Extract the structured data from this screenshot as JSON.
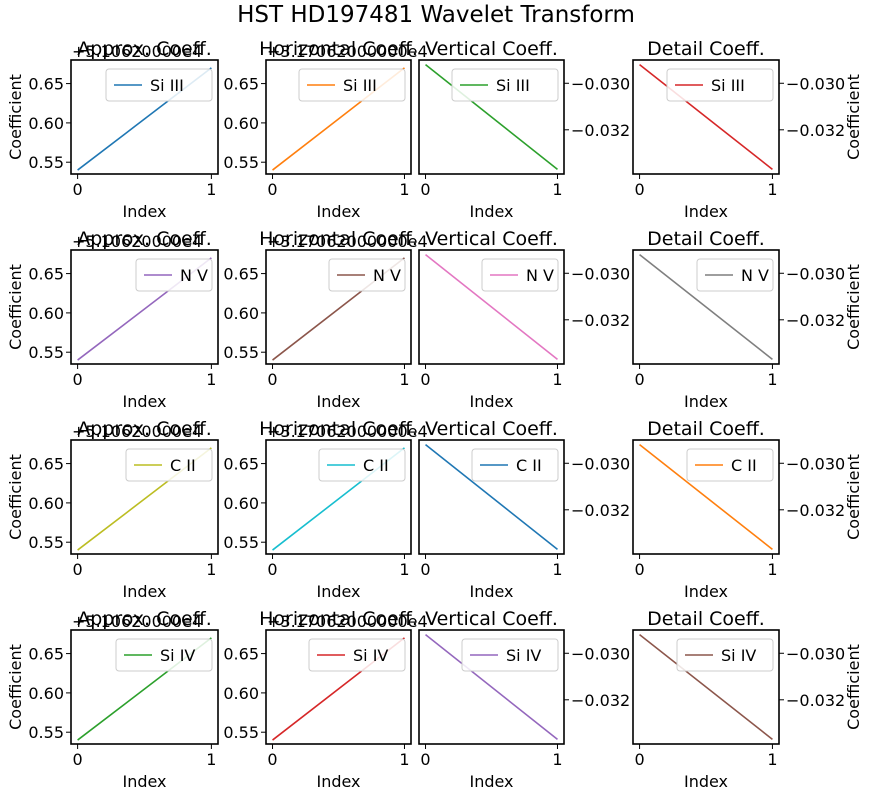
{
  "figure": {
    "title": "HST HD197481 Wavelet Transform"
  },
  "panel_titles": [
    "Approx. Coeff.",
    "Horizontal Coeff.",
    "Vertical Coeff.",
    "Detail Coeff."
  ],
  "axis_text": {
    "xlabel": "Index",
    "ylabel": "Coefficient",
    "offset_approx": "+5.10620000e4",
    "offset_horizontal": "+3.17062000000e4"
  },
  "chart_data": [
    {
      "type": "line",
      "row": "Si III",
      "panel": "Approx. Coeff.",
      "x": [
        0,
        1
      ],
      "y": [
        0.54,
        0.67
      ],
      "ylim": [
        0.535,
        0.68
      ],
      "yticks": [
        0.55,
        0.6,
        0.65
      ],
      "ytick_labels": [
        "0.55",
        "0.60",
        "0.65"
      ],
      "xticks": [
        0,
        1
      ],
      "xtick_labels": [
        "0",
        "1"
      ],
      "series": [
        {
          "name": "Si III",
          "color": "#1f77b4"
        }
      ],
      "legend": "upper-right"
    },
    {
      "type": "line",
      "row": "Si III",
      "panel": "Horizontal Coeff.",
      "x": [
        0,
        1
      ],
      "y": [
        0.54,
        0.67
      ],
      "ylim": [
        0.535,
        0.68
      ],
      "yticks": [
        0.55,
        0.6,
        0.65
      ],
      "ytick_labels": [
        "0.55",
        "0.60",
        "0.65"
      ],
      "xticks": [
        0,
        1
      ],
      "xtick_labels": [
        "0",
        "1"
      ],
      "series": [
        {
          "name": "Si III",
          "color": "#ff7f0e"
        }
      ],
      "legend": "upper-right"
    },
    {
      "type": "line",
      "row": "Si III",
      "panel": "Vertical Coeff.",
      "x": [
        0,
        1
      ],
      "y": [
        -0.0292,
        -0.0337
      ],
      "ylim": [
        -0.0339,
        -0.029
      ],
      "yticks": [
        -0.03,
        -0.032
      ],
      "ytick_labels": [
        "−0.030",
        "−0.032"
      ],
      "xticks": [
        0,
        1
      ],
      "xtick_labels": [
        "0",
        "1"
      ],
      "series": [
        {
          "name": "Si III",
          "color": "#2ca02c"
        }
      ],
      "legend": "upper-right"
    },
    {
      "type": "line",
      "row": "Si III",
      "panel": "Detail Coeff.",
      "x": [
        0,
        1
      ],
      "y": [
        -0.0292,
        -0.0337
      ],
      "ylim": [
        -0.0339,
        -0.029
      ],
      "yticks": [
        -0.03,
        -0.032
      ],
      "ytick_labels": [
        "−0.030",
        "−0.032"
      ],
      "xticks": [
        0,
        1
      ],
      "xtick_labels": [
        "0",
        "1"
      ],
      "series": [
        {
          "name": "Si III",
          "color": "#d62728"
        }
      ],
      "legend": "upper-right"
    },
    {
      "type": "line",
      "row": "N V",
      "panel": "Approx. Coeff.",
      "x": [
        0,
        1
      ],
      "y": [
        0.54,
        0.67
      ],
      "ylim": [
        0.535,
        0.68
      ],
      "yticks": [
        0.55,
        0.6,
        0.65
      ],
      "ytick_labels": [
        "0.55",
        "0.60",
        "0.65"
      ],
      "xticks": [
        0,
        1
      ],
      "xtick_labels": [
        "0",
        "1"
      ],
      "series": [
        {
          "name": "N V",
          "color": "#9467bd"
        }
      ],
      "legend": "upper-right"
    },
    {
      "type": "line",
      "row": "N V",
      "panel": "Horizontal Coeff.",
      "x": [
        0,
        1
      ],
      "y": [
        0.54,
        0.67
      ],
      "ylim": [
        0.535,
        0.68
      ],
      "yticks": [
        0.55,
        0.6,
        0.65
      ],
      "ytick_labels": [
        "0.55",
        "0.60",
        "0.65"
      ],
      "xticks": [
        0,
        1
      ],
      "xtick_labels": [
        "0",
        "1"
      ],
      "series": [
        {
          "name": "N V",
          "color": "#8c564b"
        }
      ],
      "legend": "upper-right"
    },
    {
      "type": "line",
      "row": "N V",
      "panel": "Vertical Coeff.",
      "x": [
        0,
        1
      ],
      "y": [
        -0.0292,
        -0.0337
      ],
      "ylim": [
        -0.0339,
        -0.029
      ],
      "yticks": [
        -0.03,
        -0.032
      ],
      "ytick_labels": [
        "−0.030",
        "−0.032"
      ],
      "xticks": [
        0,
        1
      ],
      "xtick_labels": [
        "0",
        "1"
      ],
      "series": [
        {
          "name": "N V",
          "color": "#e377c2"
        }
      ],
      "legend": "upper-right"
    },
    {
      "type": "line",
      "row": "N V",
      "panel": "Detail Coeff.",
      "x": [
        0,
        1
      ],
      "y": [
        -0.0292,
        -0.0337
      ],
      "ylim": [
        -0.0339,
        -0.029
      ],
      "yticks": [
        -0.03,
        -0.032
      ],
      "ytick_labels": [
        "−0.030",
        "−0.032"
      ],
      "xticks": [
        0,
        1
      ],
      "xtick_labels": [
        "0",
        "1"
      ],
      "series": [
        {
          "name": "N V",
          "color": "#7f7f7f"
        }
      ],
      "legend": "upper-right"
    },
    {
      "type": "line",
      "row": "C II",
      "panel": "Approx. Coeff.",
      "x": [
        0,
        1
      ],
      "y": [
        0.54,
        0.67
      ],
      "ylim": [
        0.535,
        0.68
      ],
      "yticks": [
        0.55,
        0.6,
        0.65
      ],
      "ytick_labels": [
        "0.55",
        "0.60",
        "0.65"
      ],
      "xticks": [
        0,
        1
      ],
      "xtick_labels": [
        "0",
        "1"
      ],
      "series": [
        {
          "name": "C II",
          "color": "#bcbd22"
        }
      ],
      "legend": "upper-right"
    },
    {
      "type": "line",
      "row": "C II",
      "panel": "Horizontal Coeff.",
      "x": [
        0,
        1
      ],
      "y": [
        0.54,
        0.67
      ],
      "ylim": [
        0.535,
        0.68
      ],
      "yticks": [
        0.55,
        0.6,
        0.65
      ],
      "ytick_labels": [
        "0.55",
        "0.60",
        "0.65"
      ],
      "xticks": [
        0,
        1
      ],
      "xtick_labels": [
        "0",
        "1"
      ],
      "series": [
        {
          "name": "C II",
          "color": "#17becf"
        }
      ],
      "legend": "upper-right"
    },
    {
      "type": "line",
      "row": "C II",
      "panel": "Vertical Coeff.",
      "x": [
        0,
        1
      ],
      "y": [
        -0.0292,
        -0.0337
      ],
      "ylim": [
        -0.0339,
        -0.029
      ],
      "yticks": [
        -0.03,
        -0.032
      ],
      "ytick_labels": [
        "−0.030",
        "−0.032"
      ],
      "xticks": [
        0,
        1
      ],
      "xtick_labels": [
        "0",
        "1"
      ],
      "series": [
        {
          "name": "C II",
          "color": "#1f77b4"
        }
      ],
      "legend": "upper-right"
    },
    {
      "type": "line",
      "row": "C II",
      "panel": "Detail Coeff.",
      "x": [
        0,
        1
      ],
      "y": [
        -0.0292,
        -0.0337
      ],
      "ylim": [
        -0.0339,
        -0.029
      ],
      "yticks": [
        -0.03,
        -0.032
      ],
      "ytick_labels": [
        "−0.030",
        "−0.032"
      ],
      "xticks": [
        0,
        1
      ],
      "xtick_labels": [
        "0",
        "1"
      ],
      "series": [
        {
          "name": "C II",
          "color": "#ff7f0e"
        }
      ],
      "legend": "upper-right"
    },
    {
      "type": "line",
      "row": "Si IV",
      "panel": "Approx. Coeff.",
      "x": [
        0,
        1
      ],
      "y": [
        0.54,
        0.67
      ],
      "ylim": [
        0.535,
        0.68
      ],
      "yticks": [
        0.55,
        0.6,
        0.65
      ],
      "ytick_labels": [
        "0.55",
        "0.60",
        "0.65"
      ],
      "xticks": [
        0,
        1
      ],
      "xtick_labels": [
        "0",
        "1"
      ],
      "series": [
        {
          "name": "Si IV",
          "color": "#2ca02c"
        }
      ],
      "legend": "upper-right"
    },
    {
      "type": "line",
      "row": "Si IV",
      "panel": "Horizontal Coeff.",
      "x": [
        0,
        1
      ],
      "y": [
        0.54,
        0.67
      ],
      "ylim": [
        0.535,
        0.68
      ],
      "yticks": [
        0.55,
        0.6,
        0.65
      ],
      "ytick_labels": [
        "0.55",
        "0.60",
        "0.65"
      ],
      "xticks": [
        0,
        1
      ],
      "xtick_labels": [
        "0",
        "1"
      ],
      "series": [
        {
          "name": "Si IV",
          "color": "#d62728"
        }
      ],
      "legend": "upper-right"
    },
    {
      "type": "line",
      "row": "Si IV",
      "panel": "Vertical Coeff.",
      "x": [
        0,
        1
      ],
      "y": [
        -0.0292,
        -0.0337
      ],
      "ylim": [
        -0.0339,
        -0.029
      ],
      "yticks": [
        -0.03,
        -0.032
      ],
      "ytick_labels": [
        "−0.030",
        "−0.032"
      ],
      "xticks": [
        0,
        1
      ],
      "xtick_labels": [
        "0",
        "1"
      ],
      "series": [
        {
          "name": "Si IV",
          "color": "#9467bd"
        }
      ],
      "legend": "upper-right"
    },
    {
      "type": "line",
      "row": "Si IV",
      "panel": "Detail Coeff.",
      "x": [
        0,
        1
      ],
      "y": [
        -0.0292,
        -0.0337
      ],
      "ylim": [
        -0.0339,
        -0.029
      ],
      "yticks": [
        -0.03,
        -0.032
      ],
      "ytick_labels": [
        "−0.030",
        "−0.032"
      ],
      "xticks": [
        0,
        1
      ],
      "xtick_labels": [
        "0",
        "1"
      ],
      "series": [
        {
          "name": "Si IV",
          "color": "#8c564b"
        }
      ],
      "legend": "upper-right"
    }
  ]
}
